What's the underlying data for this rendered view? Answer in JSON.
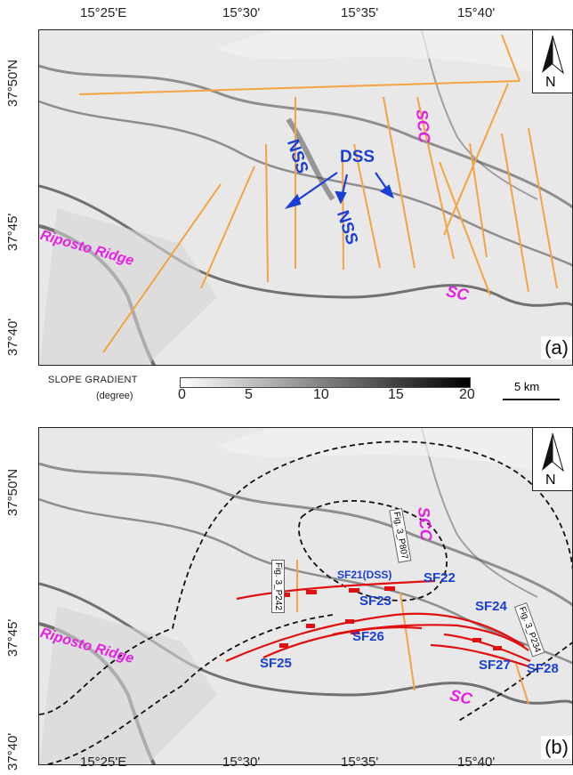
{
  "longitude_ticks_top": [
    "15°25'E",
    "15°30'",
    "15°35'",
    "15°40'"
  ],
  "longitude_ticks_bottom": [
    "15°25'E",
    "15°30'",
    "15°35'",
    "15°40'"
  ],
  "latitude_ticks_a": [
    "37°50'N",
    "37°45'",
    "37°40'"
  ],
  "latitude_ticks_b": [
    "37°50'N",
    "37°45'",
    "37°40'"
  ],
  "north_label": "N",
  "panel_a": {
    "letter": "(a)",
    "labels": {
      "scc": "SCC",
      "nss_1": "NSS",
      "nss_2": "NSS",
      "dss": "DSS",
      "riposto": "Riposto Ridge",
      "sc": "SC"
    }
  },
  "legend": {
    "title": "SLOPE GRADIENT",
    "unit": "(degree)",
    "ticks": [
      "0",
      "5",
      "10",
      "15",
      "20"
    ],
    "scale_bar": "5 km"
  },
  "panel_b": {
    "letter": "(b)",
    "labels": {
      "scc": "SCC",
      "riposto": "Riposto Ridge",
      "sc": "SC",
      "sf21": "SF21(DSS)",
      "sf22": "SF22",
      "sf23": "SF23",
      "sf24": "SF24",
      "sf25": "SF25",
      "sf26": "SF26",
      "sf27": "SF27",
      "sf28": "SF28"
    },
    "profile_labels": {
      "p242": "Fig. 3_P242",
      "p807": "Fig. 3_P807",
      "p234": "Fig. 3_P234"
    }
  },
  "colors": {
    "profile_lines": "#f5a341",
    "faults": "#e01010",
    "labels_blue": "#1a3fd6",
    "labels_magenta": "#e61ee6",
    "dashed_boundaries": "#111111"
  }
}
